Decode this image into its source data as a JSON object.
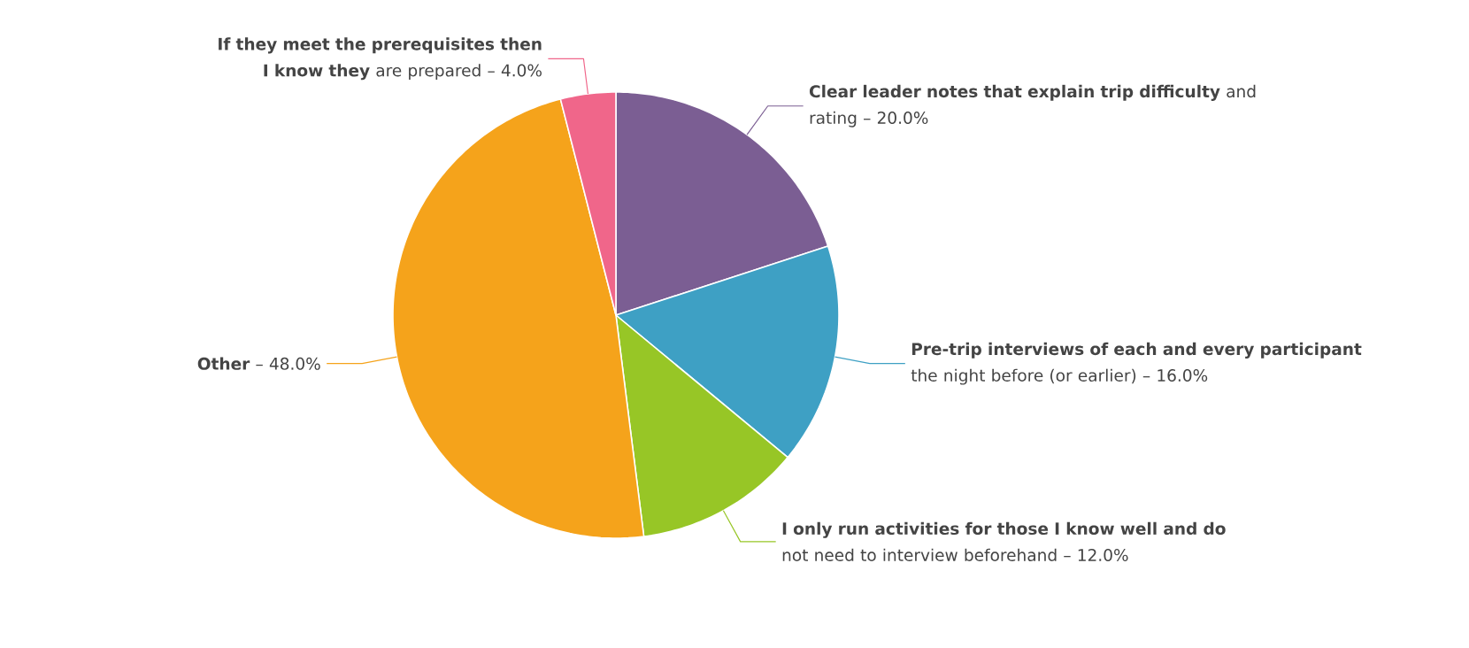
{
  "chart_data": {
    "type": "pie",
    "categories": [
      "**Clear leader notes that explain trip difficulty** and rating –",
      "**Pre-trip interviews of each and every participant** the night before (or earlier) –",
      "**I only run activities for those I know well and do** not need to interview beforehand –",
      "**Other** –",
      "**If they meet the prerequisites then I know they** are prepared –"
    ],
    "values": [
      20,
      16,
      12,
      48,
      4
    ],
    "value_labels": [
      "20.0%",
      "16.0%",
      "12.0%",
      "48.0%",
      "4.0%"
    ],
    "colors": [
      "#7b5e93",
      "#3ea0c4",
      "#97c626",
      "#f5a31b",
      "#f0668a"
    ]
  }
}
